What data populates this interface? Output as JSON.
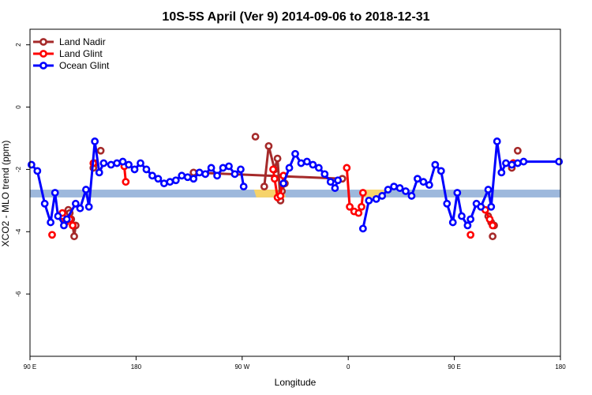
{
  "chart_data": {
    "type": "line",
    "title": "10S-5S April (Ver 9)   2014-09-06 to 2018-12-31",
    "xlabel": "Longitude",
    "ylabel": "XCO2 - MLO trend (ppm)",
    "xlim": [
      90,
      450
    ],
    "ylim": [
      -8,
      2.5
    ],
    "x_ticks": [
      {
        "value": 90,
        "label": "90 E"
      },
      {
        "value": 162,
        "label": "180"
      },
      {
        "value": 234,
        "label": "90 W"
      },
      {
        "value": 306,
        "label": "0"
      },
      {
        "value": 378,
        "label": "90 E"
      },
      {
        "value": 450,
        "label": "180"
      }
    ],
    "y_ticks": [
      {
        "value": 2,
        "label": "2"
      },
      {
        "value": 0,
        "label": "0"
      },
      {
        "value": -2,
        "label": "-2"
      },
      {
        "value": -4,
        "label": "-4"
      },
      {
        "value": -6,
        "label": "-6"
      }
    ],
    "grid": false,
    "legend_position": "top-left",
    "surface_band": {
      "y_range": [
        -2.9,
        -2.65
      ],
      "ocean_color": "#9db8dc",
      "land_color": "#f6d36a",
      "land_segments": [
        [
          242,
          262
        ],
        [
          316,
          330
        ]
      ]
    },
    "series": [
      {
        "name": "Land Nadir",
        "color": "#a52a2a",
        "segments": [
          [
            [
              116,
              -3.3
            ],
            [
              117,
              -3.4
            ],
            [
              118,
              -3.6
            ],
            [
              119,
              -3.8
            ],
            [
              120,
              -4.15
            ],
            [
              121,
              -3.8
            ]
          ],
          [
            [
              133,
              -1.95
            ],
            [
              134,
              -1.8
            ]
          ],
          [
            [
              138,
              -1.4
            ]
          ],
          [
            [
              249,
              -2.55
            ],
            [
              252,
              -1.25
            ],
            [
              256,
              -2.0
            ],
            [
              258,
              -1.65
            ],
            [
              260,
              -3.0
            ],
            [
              261,
              -2.7
            ],
            [
              263,
              -2.45
            ]
          ],
          [
            [
              243,
              -0.95
            ]
          ],
          [
            [
              201,
              -2.1
            ],
            [
              302,
              -2.3
            ]
          ],
          [
            [
              401,
              -3.5
            ],
            [
              403,
              -3.7
            ],
            [
              405,
              -3.8
            ]
          ],
          [
            [
              404,
              -4.15
            ]
          ],
          [
            [
              417,
              -1.95
            ],
            [
              418,
              -1.8
            ]
          ],
          [
            [
              421,
              -1.4
            ]
          ]
        ]
      },
      {
        "name": "Land Glint",
        "color": "#ff0000",
        "segments": [
          [
            [
              105,
              -4.1
            ]
          ],
          [
            [
              112,
              -3.5
            ],
            [
              112,
              -3.4
            ]
          ],
          [
            [
              114,
              -3.7
            ]
          ],
          [
            [
              117,
              -3.6
            ],
            [
              119,
              -3.8
            ]
          ],
          [
            [
              133,
              -1.8
            ]
          ],
          [
            [
              154,
              -1.9
            ],
            [
              155,
              -2.4
            ]
          ],
          [
            [
              255,
              -2.0
            ],
            [
              256,
              -2.3
            ],
            [
              258,
              -2.9
            ],
            [
              260,
              -2.85
            ],
            [
              262,
              -2.2
            ]
          ],
          [
            [
              305,
              -1.95
            ],
            [
              307,
              -3.2
            ],
            [
              310,
              -3.35
            ],
            [
              313,
              -3.4
            ],
            [
              315,
              -3.2
            ],
            [
              316,
              -2.75
            ]
          ],
          [
            [
              389,
              -4.1
            ]
          ],
          [
            [
              399,
              -3.3
            ],
            [
              402,
              -3.6
            ],
            [
              404,
              -3.8
            ]
          ],
          [
            [
              418,
              -1.8
            ]
          ]
        ]
      },
      {
        "name": "Ocean Glint",
        "color": "#0000ff",
        "segments": [
          [
            [
              91,
              -1.85
            ],
            [
              95,
              -2.05
            ],
            [
              100,
              -3.1
            ],
            [
              104,
              -3.7
            ],
            [
              107,
              -2.75
            ],
            [
              109,
              -3.5
            ],
            [
              113,
              -3.8
            ],
            [
              115,
              -3.6
            ],
            [
              121,
              -3.1
            ],
            [
              124,
              -3.25
            ],
            [
              128,
              -2.65
            ],
            [
              130,
              -3.2
            ],
            [
              134,
              -1.1
            ],
            [
              137,
              -2.1
            ],
            [
              140,
              -1.8
            ],
            [
              145,
              -1.85
            ],
            [
              149,
              -1.8
            ],
            [
              153,
              -1.75
            ],
            [
              157,
              -1.85
            ],
            [
              161,
              -2.0
            ],
            [
              165,
              -1.8
            ],
            [
              169,
              -2.0
            ],
            [
              173,
              -2.2
            ],
            [
              177,
              -2.3
            ],
            [
              181,
              -2.45
            ],
            [
              185,
              -2.4
            ],
            [
              189,
              -2.35
            ],
            [
              193,
              -2.2
            ],
            [
              197,
              -2.25
            ],
            [
              201,
              -2.3
            ],
            [
              205,
              -2.1
            ],
            [
              209,
              -2.15
            ],
            [
              213,
              -1.95
            ],
            [
              217,
              -2.2
            ],
            [
              221,
              -1.95
            ],
            [
              225,
              -1.9
            ],
            [
              229,
              -2.15
            ],
            [
              233,
              -2.0
            ],
            [
              235,
              -2.55
            ]
          ],
          [
            [
              262,
              -2.45
            ],
            [
              266,
              -1.95
            ],
            [
              270,
              -1.5
            ],
            [
              274,
              -1.8
            ],
            [
              278,
              -1.75
            ],
            [
              282,
              -1.85
            ],
            [
              286,
              -1.95
            ],
            [
              290,
              -2.15
            ],
            [
              294,
              -2.4
            ],
            [
              297,
              -2.6
            ],
            [
              299,
              -2.35
            ]
          ],
          [
            [
              316,
              -3.9
            ],
            [
              320,
              -3.0
            ],
            [
              325,
              -2.95
            ],
            [
              329,
              -2.85
            ],
            [
              333,
              -2.65
            ],
            [
              337,
              -2.55
            ],
            [
              341,
              -2.6
            ],
            [
              345,
              -2.7
            ],
            [
              349,
              -2.85
            ],
            [
              353,
              -2.3
            ],
            [
              357,
              -2.4
            ],
            [
              361,
              -2.5
            ],
            [
              365,
              -1.85
            ],
            [
              369,
              -2.05
            ],
            [
              373,
              -3.1
            ],
            [
              377,
              -3.7
            ],
            [
              380,
              -2.75
            ],
            [
              383,
              -3.5
            ],
            [
              387,
              -3.8
            ],
            [
              389,
              -3.6
            ],
            [
              393,
              -3.1
            ],
            [
              396,
              -3.2
            ],
            [
              401,
              -2.65
            ],
            [
              403,
              -3.2
            ],
            [
              407,
              -1.1
            ],
            [
              410,
              -2.1
            ],
            [
              413,
              -1.8
            ],
            [
              417,
              -1.85
            ],
            [
              421,
              -1.8
            ],
            [
              425,
              -1.75
            ],
            [
              449,
              -1.75
            ]
          ]
        ]
      }
    ]
  }
}
